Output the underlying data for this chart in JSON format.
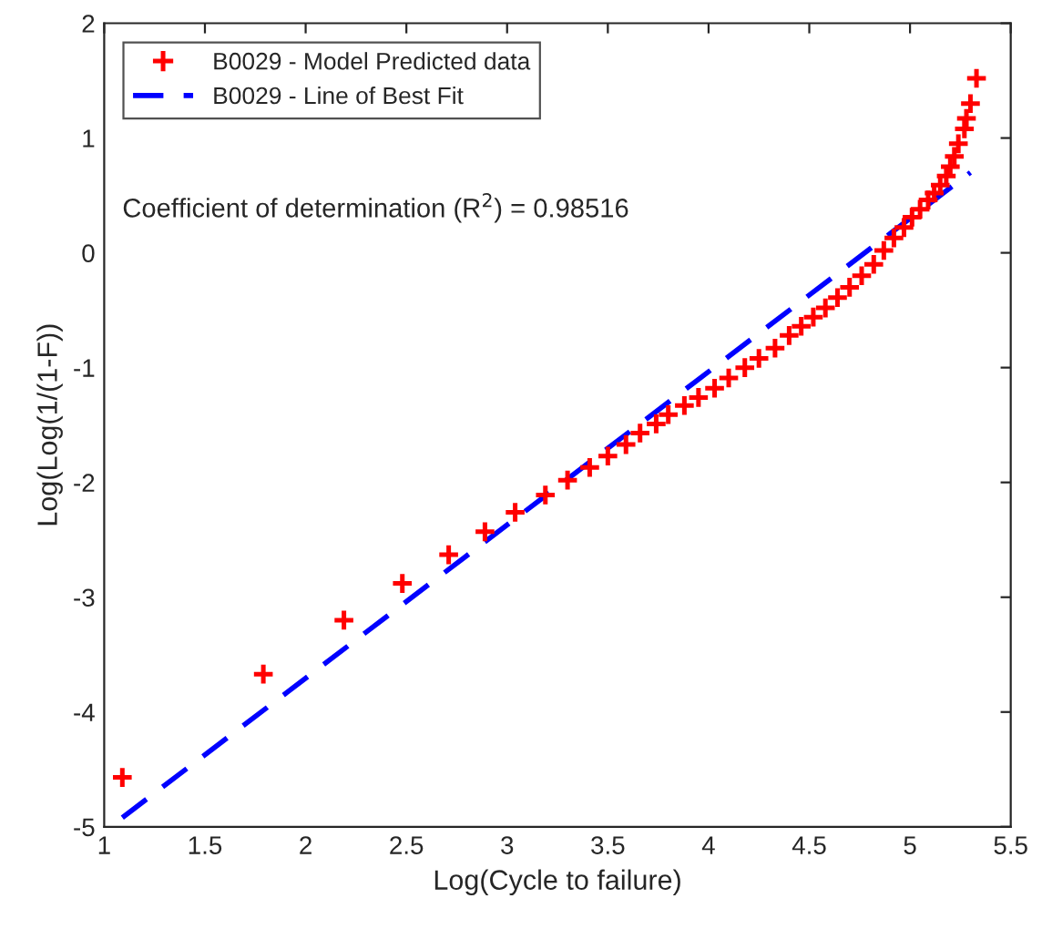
{
  "chart_data": {
    "type": "scatter",
    "xlabel": "Log(Cycle to failure)",
    "ylabel": "Log(Log(1/(1-F))",
    "annotations": [
      "Coefficient of determination (R$^{2}$) = 0.98516"
    ],
    "series": [
      {
        "name": "B0029 - Model Predicted data",
        "color": "#ff0000",
        "marker": "cross",
        "x": [
          1.09,
          1.79,
          2.19,
          2.48,
          2.71,
          2.89,
          3.04,
          3.19,
          3.3,
          3.41,
          3.5,
          3.59,
          3.66,
          3.74,
          3.8,
          3.88,
          3.95,
          4.03,
          4.1,
          4.18,
          4.25,
          4.33,
          4.4,
          4.46,
          4.52,
          4.58,
          4.64,
          4.7,
          4.76,
          4.82,
          4.87,
          4.92,
          4.97,
          5.01,
          5.05,
          5.09,
          5.12,
          5.15,
          5.18,
          5.2,
          5.22,
          5.24,
          5.27,
          5.28,
          5.3,
          5.33
        ],
        "values": [
          -4.57,
          -3.67,
          -3.2,
          -2.88,
          -2.63,
          -2.43,
          -2.26,
          -2.11,
          -1.98,
          -1.87,
          -1.77,
          -1.67,
          -1.57,
          -1.49,
          -1.41,
          -1.33,
          -1.26,
          -1.18,
          -1.09,
          -1.0,
          -0.92,
          -0.83,
          -0.72,
          -0.64,
          -0.56,
          -0.48,
          -0.39,
          -0.3,
          -0.2,
          -0.1,
          0.02,
          0.13,
          0.22,
          0.31,
          0.38,
          0.46,
          0.52,
          0.59,
          0.67,
          0.75,
          0.84,
          0.95,
          1.08,
          1.17,
          1.3,
          1.52
        ]
      },
      {
        "name": "B0029 - Line of Best Fit",
        "type": "line",
        "color": "#0000ff",
        "line_style": "dashed",
        "marker": "none",
        "x": [
          1.09,
          5.3
        ],
        "values": [
          -4.92,
          0.7
        ]
      }
    ],
    "xlim": [
      1,
      5.5
    ],
    "xticks": [
      1,
      1.5,
      2,
      2.5,
      3,
      3.5,
      4,
      4.5,
      5,
      5.5
    ],
    "ylim": [
      -5,
      2
    ],
    "yticks": [
      -5,
      -4,
      -3,
      -2,
      -1,
      0,
      1,
      2
    ],
    "grid": false,
    "legend": "top left"
  }
}
